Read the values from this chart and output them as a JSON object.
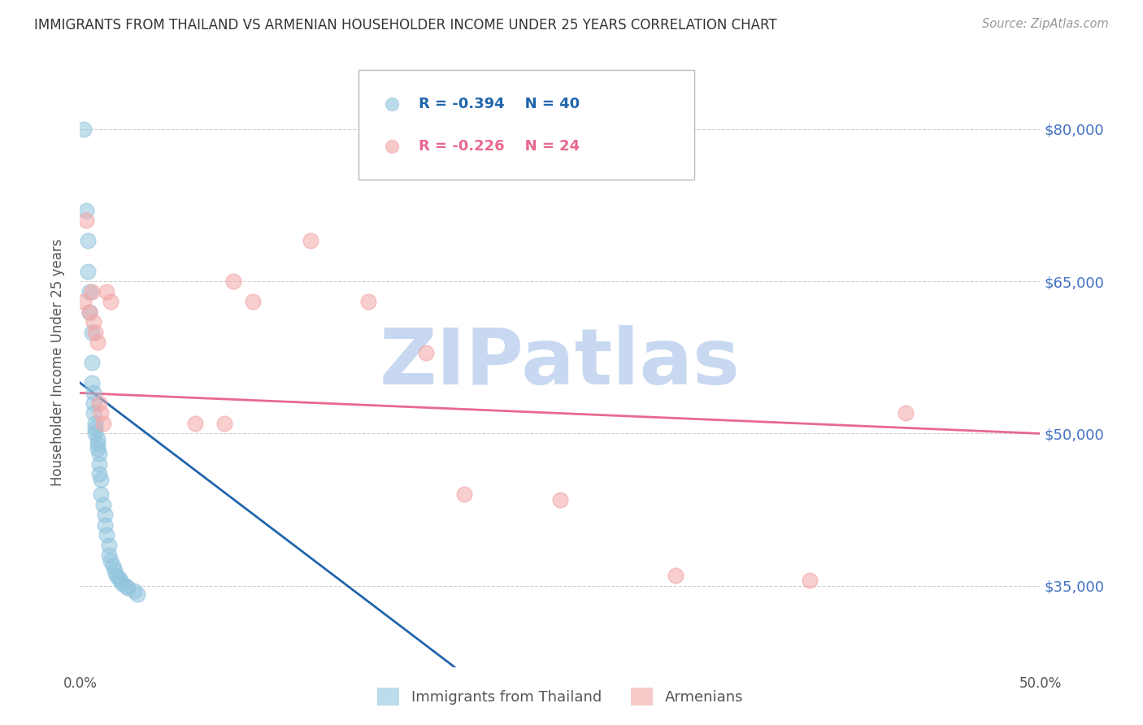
{
  "title": "IMMIGRANTS FROM THAILAND VS ARMENIAN HOUSEHOLDER INCOME UNDER 25 YEARS CORRELATION CHART",
  "source": "Source: ZipAtlas.com",
  "ylabel": "Householder Income Under 25 years",
  "xlim": [
    0.0,
    0.5
  ],
  "ylim": [
    27000,
    87000
  ],
  "yticks": [
    35000,
    50000,
    65000,
    80000
  ],
  "ytick_labels": [
    "$35,000",
    "$50,000",
    "$65,000",
    "$80,000"
  ],
  "xticks": [
    0.0,
    0.1,
    0.2,
    0.3,
    0.4,
    0.5
  ],
  "xtick_labels": [
    "0.0%",
    "",
    "",
    "",
    "",
    "50.0%"
  ],
  "legend_labels": [
    "Immigrants from Thailand",
    "Armenians"
  ],
  "thailand_color": "#92c5de",
  "armenian_color": "#f4a6a6",
  "axis_label_color": "#4472c4",
  "watermark": "ZIPatlas",
  "watermark_color": "#c8d8f0",
  "grid_color": "#d0d0d0",
  "thailand_x": [
    0.002,
    0.003,
    0.004,
    0.004,
    0.005,
    0.005,
    0.006,
    0.006,
    0.006,
    0.007,
    0.007,
    0.007,
    0.008,
    0.008,
    0.008,
    0.009,
    0.009,
    0.009,
    0.01,
    0.01,
    0.01,
    0.011,
    0.011,
    0.012,
    0.013,
    0.013,
    0.014,
    0.015,
    0.015,
    0.016,
    0.017,
    0.018,
    0.019,
    0.02,
    0.021,
    0.022,
    0.024,
    0.025,
    0.028,
    0.03
  ],
  "thailand_y": [
    80000,
    72000,
    69000,
    66000,
    64000,
    62000,
    60000,
    57000,
    55000,
    54000,
    53000,
    52000,
    51000,
    50500,
    50000,
    49500,
    49000,
    48500,
    48000,
    47000,
    46000,
    45500,
    44000,
    43000,
    42000,
    41000,
    40000,
    39000,
    38000,
    37500,
    37000,
    36500,
    36000,
    35800,
    35500,
    35200,
    35000,
    34800,
    34500,
    34200
  ],
  "armenian_x": [
    0.002,
    0.003,
    0.005,
    0.006,
    0.007,
    0.008,
    0.009,
    0.01,
    0.011,
    0.012,
    0.014,
    0.016,
    0.06,
    0.075,
    0.08,
    0.09,
    0.12,
    0.15,
    0.18,
    0.2,
    0.25,
    0.31,
    0.38,
    0.43
  ],
  "armenian_y": [
    63000,
    71000,
    62000,
    64000,
    61000,
    60000,
    59000,
    53000,
    52000,
    51000,
    64000,
    63000,
    51000,
    51000,
    65000,
    63000,
    69000,
    63000,
    58000,
    44000,
    43500,
    36000,
    35500,
    52000
  ],
  "thailand_line_x": [
    0.0,
    0.195
  ],
  "thailand_line_y": [
    55000,
    27000
  ],
  "armenian_line_x": [
    0.0,
    0.5
  ],
  "armenian_line_y": [
    54000,
    50000
  ]
}
